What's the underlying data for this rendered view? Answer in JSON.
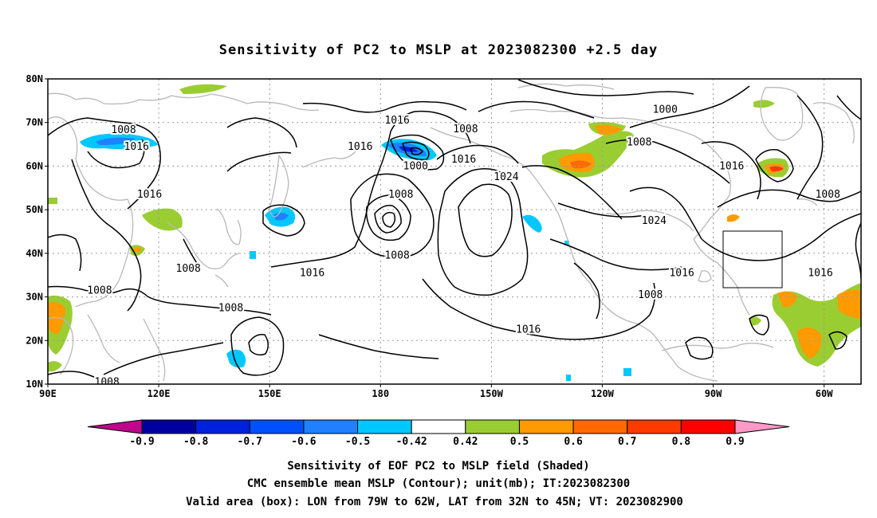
{
  "title": "Sensitivity of PC2 to MSLP at 2023082300 +2.5 day",
  "map": {
    "lon_range": [
      90,
      310
    ],
    "lat_range": [
      10,
      80
    ],
    "lat_ticks": [
      "10N",
      "20N",
      "30N",
      "40N",
      "50N",
      "60N",
      "70N",
      "80N"
    ],
    "lon_ticks": [
      "90E",
      "120E",
      "150E",
      "180",
      "150W",
      "120W",
      "90W",
      "60W"
    ],
    "grid": "dotted",
    "valid_box": {
      "lon": [
        281,
        298
      ],
      "lat": [
        32,
        45
      ]
    }
  },
  "contour_labels": [
    {
      "text": "1016",
      "lon": 184.5,
      "lat": 70.5
    },
    {
      "text": "1008",
      "lon": 110.5,
      "lat": 68.3
    },
    {
      "text": "1016",
      "lon": 114,
      "lat": 64.5
    },
    {
      "text": "1016",
      "lon": 174.5,
      "lat": 64.5
    },
    {
      "text": "1008",
      "lon": 203,
      "lat": 68.5
    },
    {
      "text": "1000",
      "lon": 257,
      "lat": 73
    },
    {
      "text": "1008",
      "lon": 250,
      "lat": 65.5
    },
    {
      "text": "1000",
      "lon": 189.5,
      "lat": 60
    },
    {
      "text": "1016",
      "lon": 202.5,
      "lat": 61.5
    },
    {
      "text": "1024",
      "lon": 214,
      "lat": 57.5
    },
    {
      "text": "1016",
      "lon": 275,
      "lat": 60
    },
    {
      "text": "1008",
      "lon": 301,
      "lat": 53.5
    },
    {
      "text": "1016",
      "lon": 117.5,
      "lat": 53.5
    },
    {
      "text": "1008",
      "lon": 185.5,
      "lat": 53.5
    },
    {
      "text": "1024",
      "lon": 254,
      "lat": 47.5
    },
    {
      "text": "1008",
      "lon": 184.5,
      "lat": 39.5
    },
    {
      "text": "1008",
      "lon": 128,
      "lat": 36.5
    },
    {
      "text": "1016",
      "lon": 161.5,
      "lat": 35.5
    },
    {
      "text": "1016",
      "lon": 261.5,
      "lat": 35.5
    },
    {
      "text": "1016",
      "lon": 299,
      "lat": 35.5
    },
    {
      "text": "1008",
      "lon": 104,
      "lat": 31.5
    },
    {
      "text": "1008",
      "lon": 253,
      "lat": 30.5
    },
    {
      "text": "1008",
      "lon": 139.5,
      "lat": 27.5
    },
    {
      "text": "1016",
      "lon": 220,
      "lat": 22.5
    },
    {
      "text": "1008",
      "lon": 106,
      "lat": 10.5
    }
  ],
  "colorbar": {
    "labels": [
      "-0.9",
      "-0.8",
      "-0.7",
      "-0.6",
      "-0.5",
      "-0.42",
      "0.42",
      "0.5",
      "0.6",
      "0.7",
      "0.8",
      "0.9"
    ],
    "colors": [
      "#c0068c",
      "#0000a0",
      "#0020e0",
      "#0050ff",
      "#2080ff",
      "#00c8ff",
      "#ffffff",
      "#9acd32",
      "#ff9a00",
      "#ff6a00",
      "#ff3a00",
      "#ff0000",
      "#ff9ac8"
    ]
  },
  "caption": {
    "line1": "Sensitivity of EOF PC2 to MSLP field (Shaded)",
    "line2": "CMC ensemble mean MSLP (Contour); unit(mb); IT:2023082300",
    "line3": "Valid area (box): LON from 79W to 62W, LAT from 32N to 45N; VT: 2023082900"
  }
}
